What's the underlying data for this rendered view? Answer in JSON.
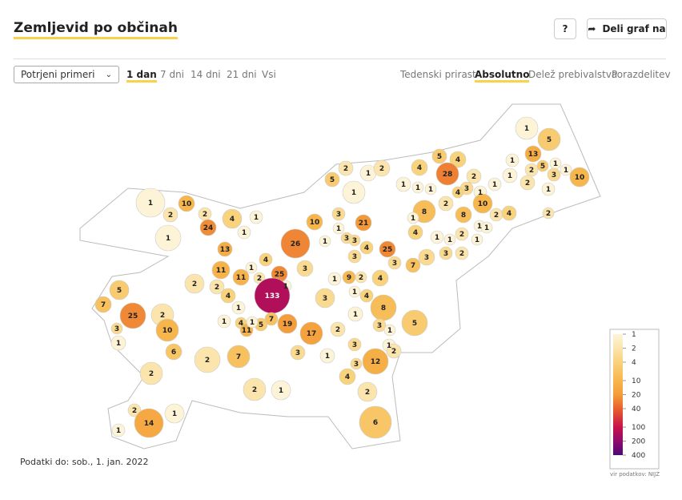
{
  "header": {
    "title": "Zemljevid po občinah",
    "help": "?",
    "share": "Deli graf na"
  },
  "controls": {
    "dropdown": "Potrjeni primeri",
    "periods": [
      "1 dan",
      "7 dni",
      "14 dni",
      "21 dni",
      "Vsi"
    ],
    "modes": [
      "Tedenski prirast",
      "Absolutno",
      "Delež prebivalstva",
      "Porazdelitev"
    ]
  },
  "map": {
    "values": [
      1,
      5,
      13,
      1,
      2,
      5,
      1,
      3,
      1,
      10,
      1,
      2,
      1,
      5,
      4,
      28,
      2,
      3,
      4,
      1,
      10,
      2,
      4,
      2,
      1,
      5,
      2,
      1,
      2,
      4,
      1,
      1,
      1,
      1,
      2,
      8,
      8,
      1,
      1,
      2,
      1,
      1,
      4,
      1,
      1,
      3,
      3,
      2,
      7,
      1,
      10,
      2,
      2,
      4,
      1,
      1,
      24,
      1,
      13,
      26,
      10,
      3,
      21,
      1,
      3,
      1,
      3,
      4,
      3,
      11,
      4,
      1,
      11,
      25,
      2,
      1,
      3,
      1,
      25,
      3,
      9,
      2,
      4,
      133,
      2,
      2,
      4,
      3,
      4,
      8,
      1,
      5,
      7,
      25,
      3,
      1,
      2,
      10,
      6,
      2,
      2,
      1,
      1,
      4,
      11,
      5,
      7,
      1,
      19,
      17,
      3,
      7,
      1,
      2,
      1,
      3,
      1,
      5,
      1,
      3,
      12,
      2,
      3,
      4,
      2,
      6,
      2,
      1,
      2,
      14,
      1,
      1
    ],
    "footer": "Podatki do: sob., 1. jan. 2022"
  },
  "legend": {
    "ticks": [
      1,
      2,
      4,
      10,
      20,
      40,
      100,
      200,
      400
    ],
    "colors": [
      "#fdf4d8",
      "#fbe5ad",
      "#f9d27c",
      "#f7b64c",
      "#f49c3a",
      "#e8612c",
      "#c8114b",
      "#8f0b6c",
      "#4e0a74"
    ],
    "log_scale": true,
    "source": "vir podatkov: NIJZ"
  }
}
